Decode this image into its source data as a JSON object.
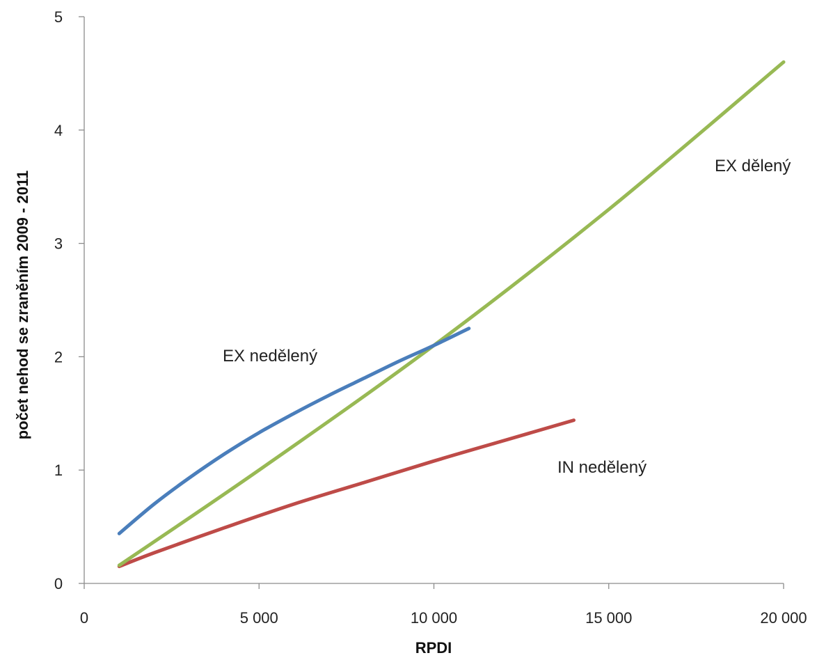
{
  "chart_data": {
    "type": "line",
    "title": "",
    "xlabel": "RPDI",
    "ylabel": "počet nehod se zraněním 2009 - 2011",
    "xlim": [
      0,
      20000
    ],
    "ylim": [
      0,
      5
    ],
    "x_ticks": [
      0,
      5000,
      10000,
      15000,
      20000
    ],
    "x_tick_labels": [
      "0",
      "5 000",
      "10 000",
      "15 000",
      "20 000"
    ],
    "y_ticks": [
      0,
      1,
      2,
      3,
      4,
      5
    ],
    "y_tick_labels": [
      "0",
      "1",
      "2",
      "3",
      "4",
      "5"
    ],
    "grid": false,
    "legend": "none",
    "series": [
      {
        "name": "EX nedělený",
        "color": "#4a7ebb",
        "x": [
          1000,
          2000,
          3000,
          4000,
          5000,
          6000,
          7000,
          8000,
          9000,
          10000,
          11000
        ],
        "y": [
          0.44,
          0.7,
          0.93,
          1.14,
          1.33,
          1.5,
          1.66,
          1.81,
          1.96,
          2.1,
          2.25
        ]
      },
      {
        "name": "EX dělený",
        "color": "#98b954",
        "x": [
          1000,
          5000,
          10000,
          15000,
          20000
        ],
        "y": [
          0.16,
          1.0,
          2.1,
          3.3,
          4.6
        ]
      },
      {
        "name": "IN nedělený",
        "color": "#be4b48",
        "x": [
          1000,
          2000,
          4000,
          6000,
          8000,
          10000,
          12000,
          14000
        ],
        "y": [
          0.15,
          0.27,
          0.49,
          0.7,
          0.89,
          1.08,
          1.26,
          1.44
        ]
      }
    ]
  }
}
